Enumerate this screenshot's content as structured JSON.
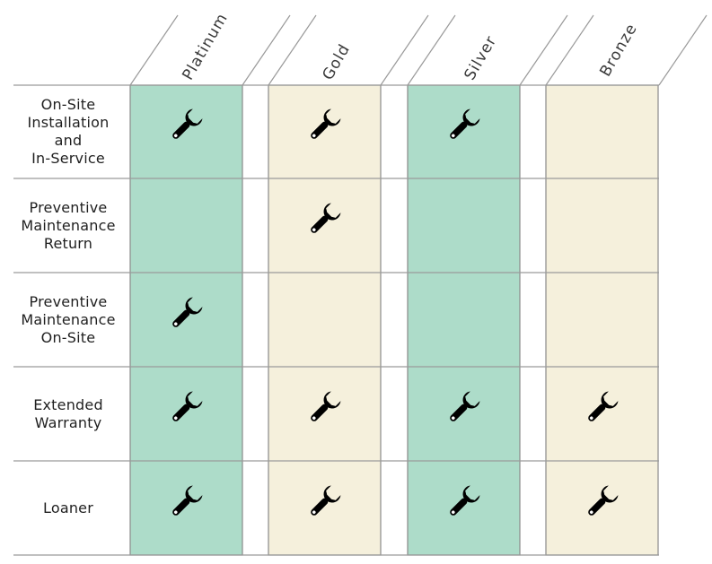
{
  "tiers": [
    {
      "label": "Platinum",
      "color": "#addcc9"
    },
    {
      "label": "Gold",
      "color": "#f5f0dc"
    },
    {
      "label": "Silver",
      "color": "#addcc9"
    },
    {
      "label": "Bronze",
      "color": "#f5f0dc"
    }
  ],
  "services": [
    {
      "label": "On-Site\nInstallation\nand\nIn-Service",
      "included": [
        true,
        true,
        true,
        false
      ]
    },
    {
      "label": "Preventive\nMaintenance\nReturn",
      "included": [
        false,
        true,
        false,
        false
      ]
    },
    {
      "label": "Preventive\nMaintenance\nOn-Site",
      "included": [
        true,
        false,
        false,
        false
      ]
    },
    {
      "label": "Extended\nWarranty",
      "included": [
        true,
        true,
        true,
        true
      ]
    },
    {
      "label": "Loaner",
      "included": [
        true,
        true,
        true,
        true
      ]
    }
  ],
  "icon": "wrench-icon",
  "line_color": "#9a9a9a",
  "border_color": "#8a8a8a"
}
